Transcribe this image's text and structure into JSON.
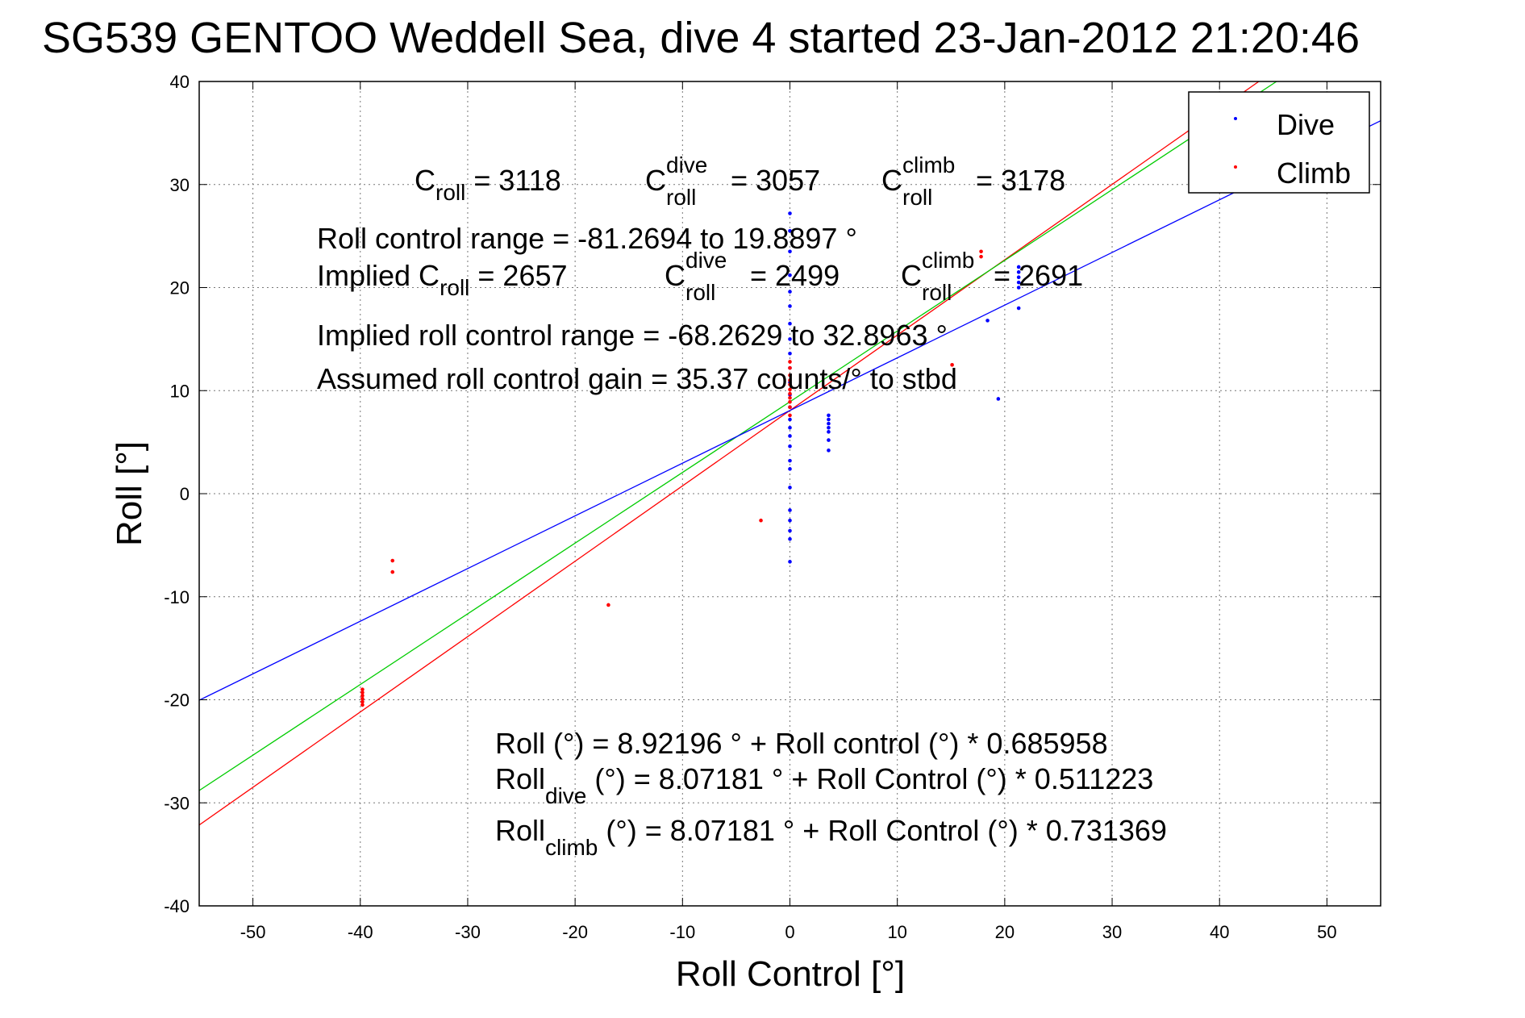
{
  "colors": {
    "dive": "#0000ff",
    "climb": "#ff0000",
    "fit_all": "#00cc00",
    "axes": "#000000"
  },
  "chart_data": {
    "type": "scatter",
    "title": "SG539 GENTOO Weddell Sea, dive 4 started 23-Jan-2012 21:20:46",
    "xlabel": "Roll Control [°]",
    "ylabel": "Roll [°]",
    "xlim": [
      -55,
      55
    ],
    "ylim": [
      -40,
      40
    ],
    "xticks": [
      -50,
      -40,
      -30,
      -20,
      -10,
      0,
      10,
      20,
      30,
      40,
      50
    ],
    "yticks": [
      -40,
      -30,
      -20,
      -10,
      0,
      10,
      20,
      30,
      40
    ],
    "grid": true,
    "legend": {
      "placement": "top-right",
      "entries": [
        "Dive",
        "Climb"
      ]
    },
    "series": [
      {
        "name": "Dive",
        "color": "#0000ff",
        "points": [
          [
            0,
            27.2
          ],
          [
            0,
            25.5
          ],
          [
            0,
            23.5
          ],
          [
            0,
            21.2
          ],
          [
            0,
            19.6
          ],
          [
            0,
            18.2
          ],
          [
            0,
            16.5
          ],
          [
            0,
            15.0
          ],
          [
            0,
            13.6
          ],
          [
            0,
            12.2
          ],
          [
            0,
            10.8
          ],
          [
            0,
            9.6
          ],
          [
            0,
            8.4
          ],
          [
            0,
            7.2
          ],
          [
            0,
            6.4
          ],
          [
            0,
            5.6
          ],
          [
            0,
            4.6
          ],
          [
            0,
            3.2
          ],
          [
            0,
            2.4
          ],
          [
            0,
            0.6
          ],
          [
            0,
            -1.6
          ],
          [
            0,
            -2.6
          ],
          [
            0,
            -3.6
          ],
          [
            0,
            -4.4
          ],
          [
            0,
            -6.6
          ],
          [
            3.6,
            7.6
          ],
          [
            3.6,
            7.2
          ],
          [
            3.6,
            6.8
          ],
          [
            3.6,
            6.4
          ],
          [
            3.6,
            6.0
          ],
          [
            3.6,
            5.2
          ],
          [
            3.6,
            4.2
          ],
          [
            21.3,
            22.0
          ],
          [
            21.3,
            21.5
          ],
          [
            21.3,
            21.0
          ],
          [
            21.3,
            20.5
          ],
          [
            21.3,
            20.0
          ],
          [
            18.4,
            16.8
          ],
          [
            21.3,
            18.0
          ],
          [
            19.4,
            9.2
          ]
        ]
      },
      {
        "name": "Climb",
        "color": "#ff0000",
        "points": [
          [
            -39.8,
            -19.0
          ],
          [
            -39.8,
            -19.3
          ],
          [
            -39.8,
            -19.6
          ],
          [
            -39.8,
            -19.9
          ],
          [
            -39.8,
            -20.2
          ],
          [
            -39.8,
            -20.5
          ],
          [
            -37.0,
            -6.5
          ],
          [
            -37.0,
            -7.6
          ],
          [
            -16.9,
            -10.8
          ],
          [
            -2.7,
            -2.6
          ],
          [
            0,
            8.4
          ],
          [
            0,
            8.9
          ],
          [
            0,
            9.3
          ],
          [
            0,
            9.7
          ],
          [
            0,
            10.1
          ],
          [
            0,
            10.6
          ],
          [
            0,
            11.0
          ],
          [
            0,
            11.5
          ],
          [
            0,
            12.2
          ],
          [
            0,
            12.8
          ],
          [
            0,
            7.6
          ],
          [
            15.1,
            12.5
          ],
          [
            17.8,
            23.5
          ],
          [
            17.8,
            23.0
          ]
        ]
      }
    ],
    "fit_lines": [
      {
        "color": "#ff0000",
        "intercept": 8.07181,
        "slope": 0.731369
      },
      {
        "color": "#00cc00",
        "intercept": 8.92196,
        "slope": 0.685958
      },
      {
        "color": "#0000ff",
        "intercept": 8.07181,
        "slope": 0.511223
      }
    ],
    "annotations": {
      "c_roll": {
        "main": "C",
        "sub": "roll",
        "rest": " = 3118"
      },
      "c_roll_dive": {
        "main": "C",
        "sup": "dive",
        "sub": "roll",
        "rest": " = 3057"
      },
      "c_roll_climb": {
        "main": "C",
        "sup": "climb",
        "sub": "roll",
        "rest": " = 3178"
      },
      "roll_control_range": "Roll control range = -81.2694 to 19.8897 °",
      "implied_c_roll": {
        "main": "Implied C",
        "sub": "roll",
        "rest": " = 2657"
      },
      "implied_c_roll_dive": {
        "main": "C",
        "sup": "dive",
        "sub": "roll",
        "rest": " = 2499"
      },
      "implied_c_roll_climb": {
        "main": "C",
        "sup": "climb",
        "sub": "roll",
        "rest": " = 2691"
      },
      "implied_range": "Implied roll control range = -68.2629 to 32.8963 °",
      "gain": "Assumed roll control gain = 35.37 counts/° to stbd",
      "fit_all": "Roll (°) = 8.92196 ° + Roll control (°) * 0.685958",
      "fit_dive": {
        "main": "Roll",
        "sub": "dive",
        "rest": " (°) = 8.07181 ° + Roll Control (°) * 0.511223"
      },
      "fit_climb": {
        "main": "Roll",
        "sub": "climb",
        "rest": " (°) = 8.07181 ° + Roll Control (°) * 0.731369"
      }
    }
  }
}
